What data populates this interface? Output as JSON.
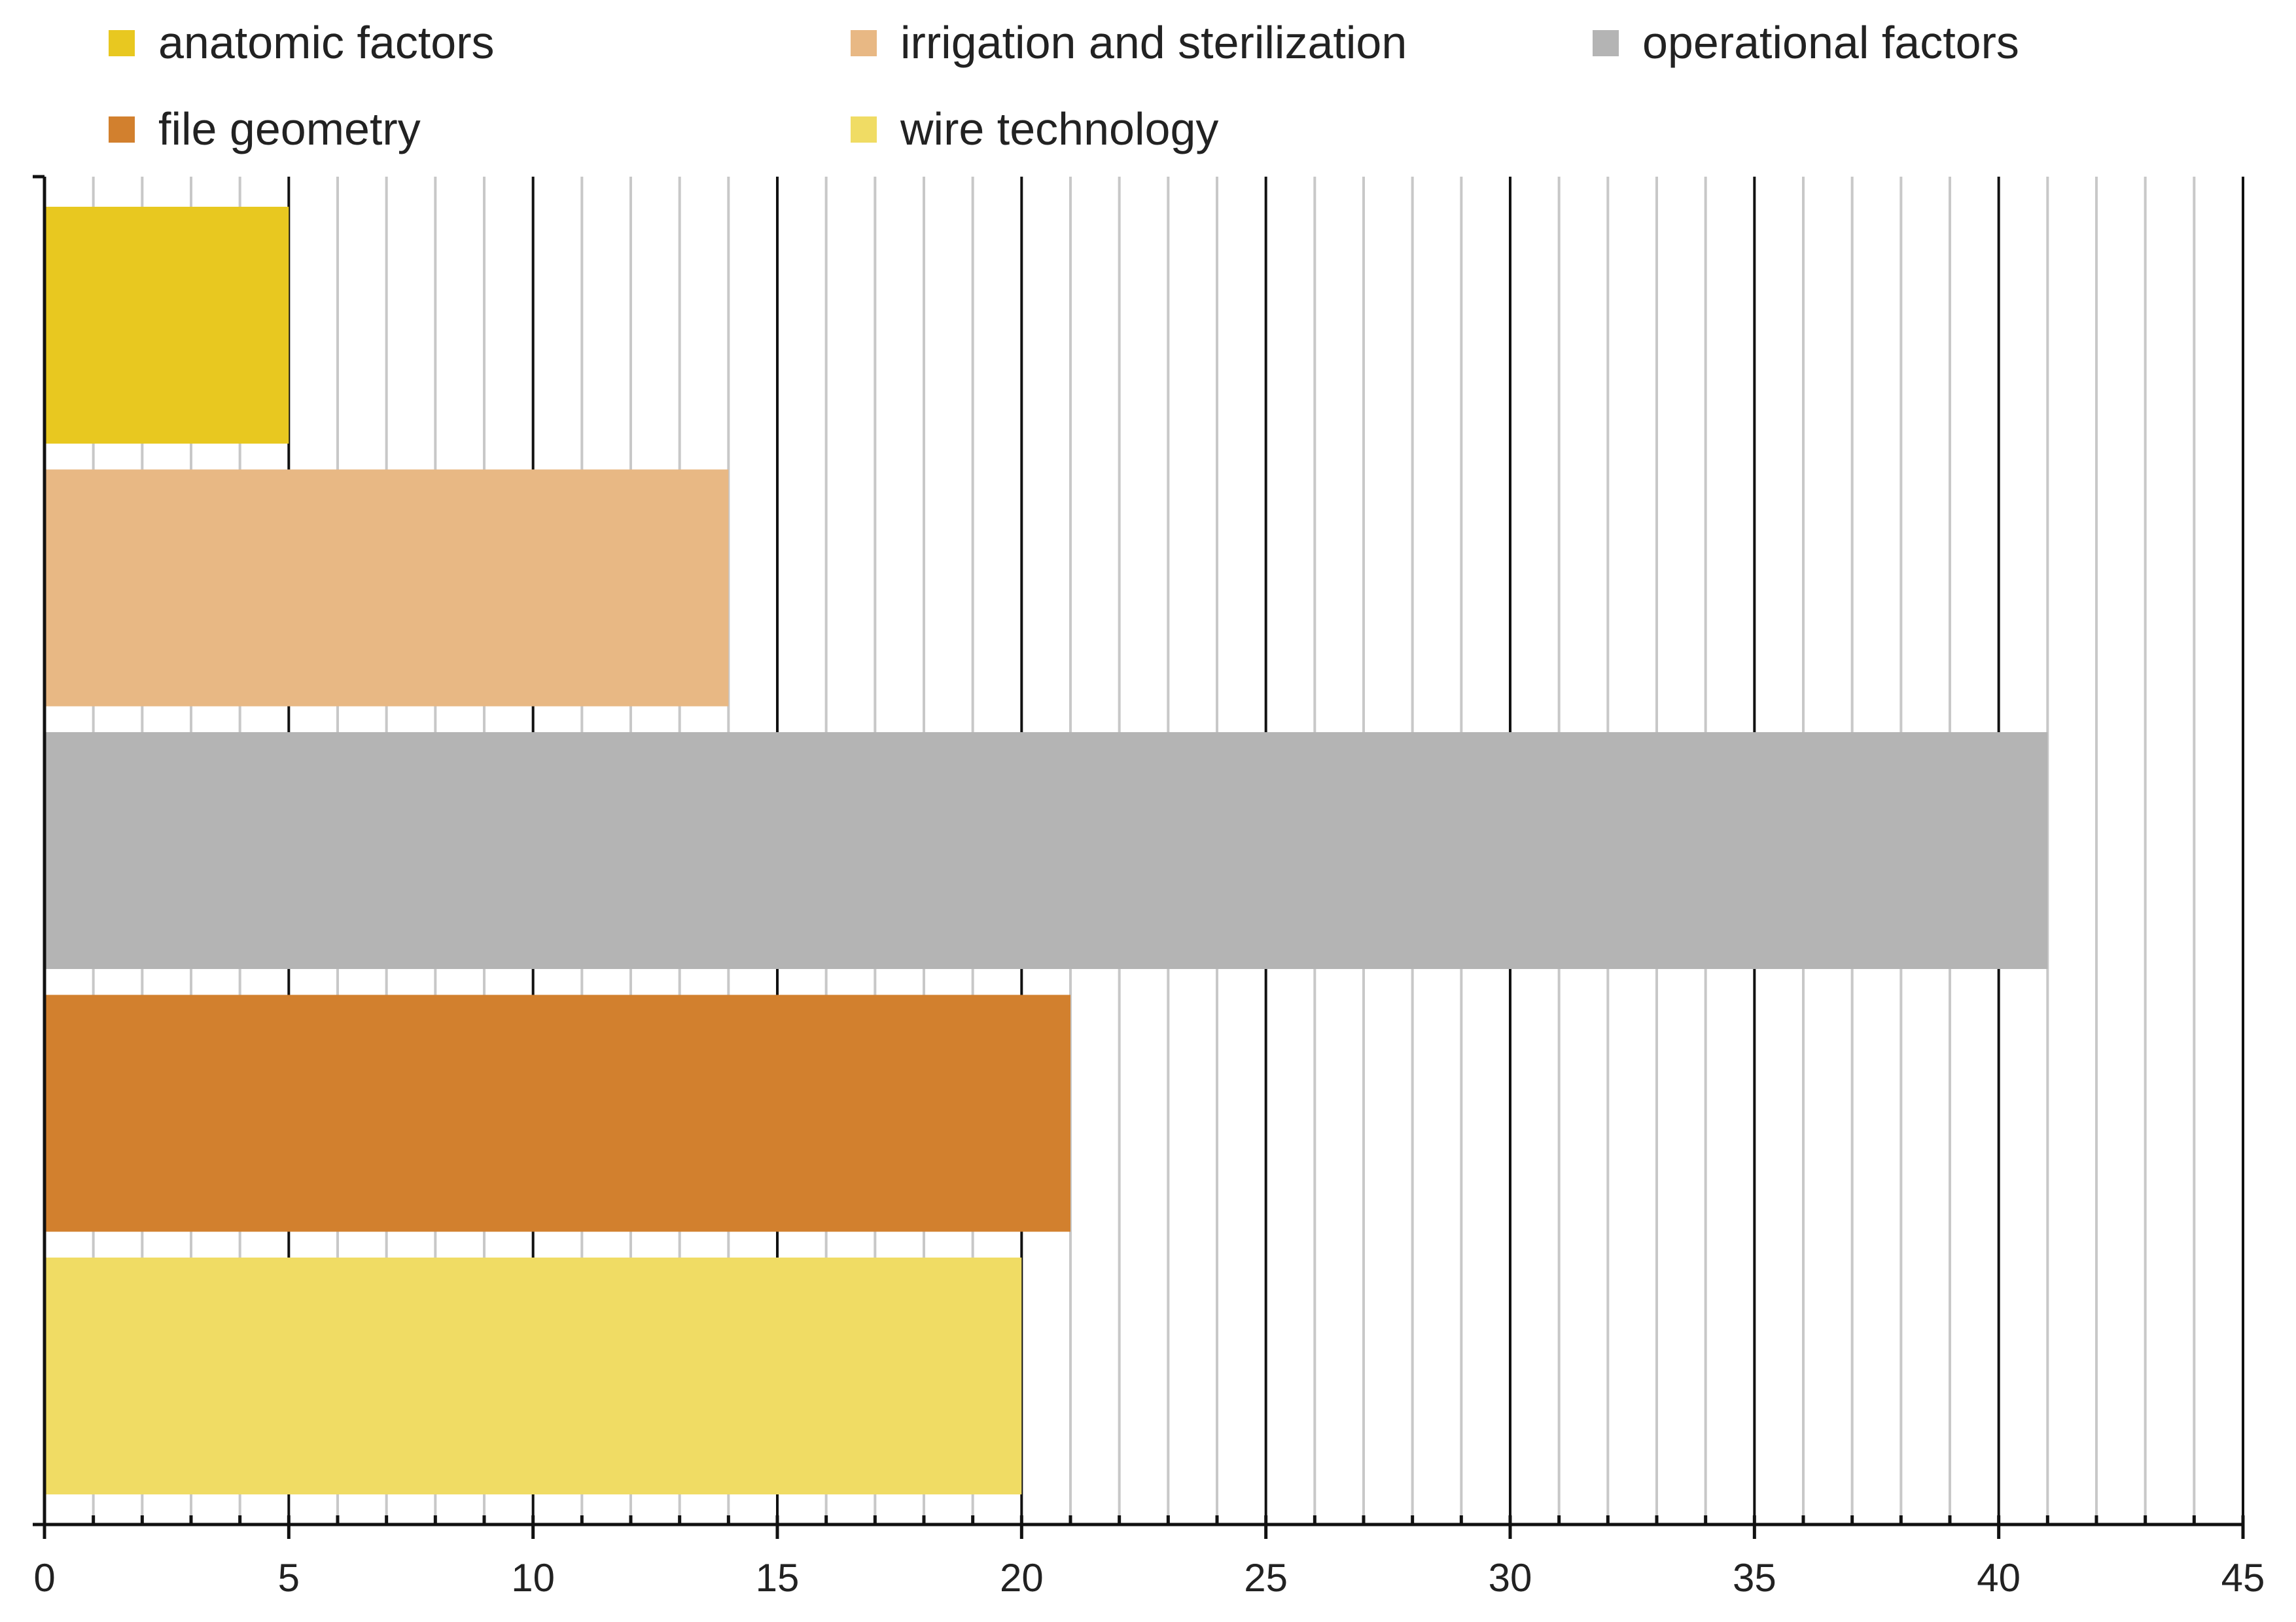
{
  "chart_data": {
    "type": "bar",
    "orientation": "horizontal",
    "categories": [
      "anatomic factors",
      "irrigation and sterilization",
      "operational factors",
      "file geometry",
      "wire technology"
    ],
    "values": [
      5,
      14,
      41,
      21,
      20
    ],
    "colors": [
      "#e8c820",
      "#e8b884",
      "#b4b4b4",
      "#d2802e",
      "#f0dc64"
    ],
    "xlim": [
      0,
      45
    ],
    "x_ticks": [
      "0",
      "5",
      "10",
      "15",
      "20",
      "25",
      "30",
      "35",
      "40",
      "45"
    ],
    "minor_tick_step": 1,
    "title": "",
    "xlabel": "",
    "ylabel": "",
    "grid": true,
    "legend_position": "top"
  }
}
